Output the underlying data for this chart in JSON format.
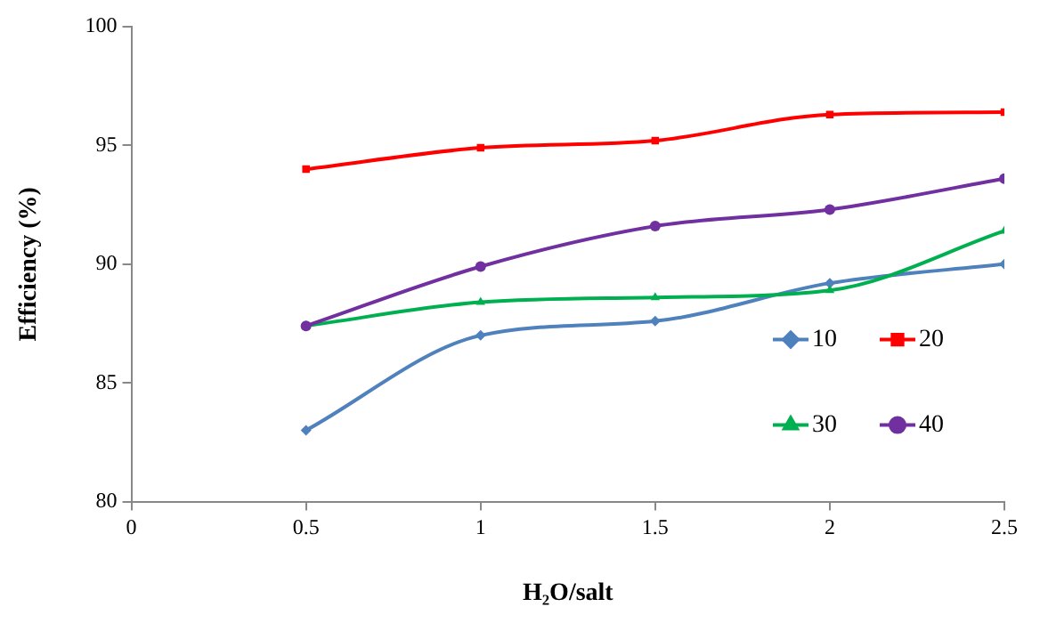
{
  "chart_data": {
    "type": "line",
    "xlabel": "H₂O/salt",
    "ylabel": "Efficiency (%)",
    "x": [
      0.5,
      1,
      1.5,
      2,
      2.5
    ],
    "xlim": [
      0,
      2.5
    ],
    "xticks": [
      0,
      0.5,
      1,
      1.5,
      2,
      2.5
    ],
    "ylim": [
      80,
      100
    ],
    "yticks": [
      80,
      85,
      90,
      95,
      100
    ],
    "grid": false,
    "legend": "bottom right",
    "series": [
      {
        "name": "10",
        "color": "#4f81bd",
        "marker": "diamond",
        "values": [
          83.0,
          87.0,
          87.6,
          89.2,
          90.0
        ]
      },
      {
        "name": "20",
        "color": "#ff0000",
        "marker": "square",
        "values": [
          94.0,
          94.9,
          95.2,
          96.3,
          96.4
        ]
      },
      {
        "name": "30",
        "color": "#00b050",
        "marker": "triangle",
        "values": [
          87.4,
          88.4,
          88.6,
          88.9,
          91.4
        ]
      },
      {
        "name": "40",
        "color": "#7030a0",
        "marker": "circle",
        "values": [
          87.4,
          89.9,
          91.6,
          92.3,
          93.6
        ]
      }
    ]
  }
}
